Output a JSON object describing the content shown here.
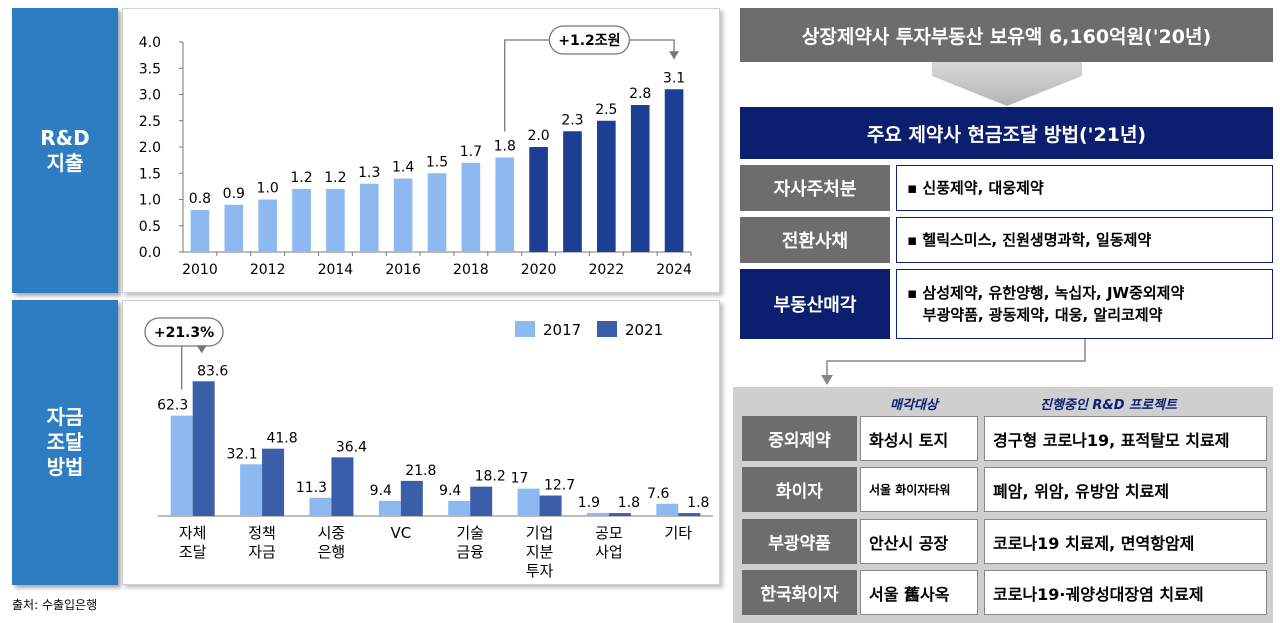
{
  "left": {
    "tab_rd": "R&D\n지출",
    "tab_funding": "자금\n조달\n방법",
    "source": "출처: 수출입은행"
  },
  "chart_data": [
    {
      "type": "bar",
      "title": "",
      "categories": [
        "2010",
        "2011",
        "2012",
        "2013",
        "2014",
        "2015",
        "2016",
        "2017",
        "2018",
        "2019",
        "2020",
        "2021",
        "2022",
        "2023",
        "2024"
      ],
      "tick_labels": [
        "2010",
        "2012",
        "2014",
        "2016",
        "2018",
        "2020",
        "2022",
        "2024"
      ],
      "values": [
        0.8,
        0.9,
        1.0,
        1.2,
        1.2,
        1.3,
        1.4,
        1.5,
        1.7,
        1.8,
        2.0,
        2.3,
        2.5,
        2.8,
        3.1
      ],
      "value_labels": [
        "0.8",
        "0.9",
        "1.0",
        "1.2",
        "1.2",
        "1.3",
        "1.4",
        "1.5",
        "1.7",
        "1.8",
        "2.0",
        "2.3",
        "2.5",
        "2.8",
        "3.1"
      ],
      "ylim": [
        0,
        4.0
      ],
      "yticks": [
        "0.0",
        "0.5",
        "1.0",
        "1.5",
        "2.0",
        "2.5",
        "3.0",
        "3.5",
        "4.0"
      ],
      "projected_from": "2020",
      "colors": {
        "actual": "#8db9f0",
        "projected": "#1c3f94"
      },
      "annotation": "+1.2조원"
    },
    {
      "type": "bar",
      "title": "",
      "categories": [
        "자체\n조달",
        "정책\n자금",
        "시중\n은행",
        "VC",
        "기술\n금융",
        "기업\n지분\n투자",
        "공모\n사업",
        "기타"
      ],
      "series": [
        {
          "name": "2017",
          "values": [
            62.3,
            32.1,
            11.3,
            9.4,
            9.4,
            17,
            1.9,
            7.6
          ],
          "labels": [
            "62.3",
            "32.1",
            "11.3",
            "9.4",
            "9.4",
            "17",
            "1.9",
            "7.6"
          ],
          "color": "#8db9f0"
        },
        {
          "name": "2021",
          "values": [
            83.6,
            41.8,
            36.4,
            21.8,
            18.2,
            12.7,
            1.8,
            1.8
          ],
          "labels": [
            "83.6",
            "41.8",
            "36.4",
            "21.8",
            "18.2",
            "12.7",
            "1.8",
            "1.8"
          ],
          "color": "#3a5fa8"
        }
      ],
      "ylim": [
        0,
        90
      ],
      "legend": "top-right",
      "annotation": "+21.3%"
    }
  ],
  "right": {
    "header_holdings": "상장제약사 투자부동산 보유액 6,160억원('20년)",
    "header_methods": "주요 제약사 현금조달 방법('21년)",
    "methods": [
      {
        "label": "자사주처분",
        "text": "▪ 신풍제약, 대웅제약"
      },
      {
        "label": "전환사채",
        "text": "▪ 헬릭스미스, 진원생명과학, 일동제약"
      },
      {
        "label": "부동산매각",
        "text": "▪ 삼성제약, 유한양행, 녹십자, JW중외제약\n   부광약품, 광동제약, 대웅, 알리코제약"
      }
    ],
    "col_sale": "매각대상",
    "col_rd": "진행중인 R&D 프로젝트",
    "companies": [
      {
        "name": "중외제약",
        "sale": "화성시 토지",
        "rd": "경구형 코로나19, 표적탈모 치료제"
      },
      {
        "name": "화이자",
        "sale": "서울 화이자타워",
        "rd": "폐암, 위암, 유방암 치료제"
      },
      {
        "name": "부광약품",
        "sale": "안산시 공장",
        "rd": "코로나19 치료제, 면역항암제"
      },
      {
        "name": "한국화이자",
        "sale": "서울 舊사옥",
        "rd": "코로나19·궤양성대장염 치료제"
      }
    ],
    "colors": {
      "navy": "#0b1f6e",
      "gray": "#6d6d6d",
      "light_gray": "#cfcfcf",
      "tab_blue": "#2e7cc1"
    }
  }
}
